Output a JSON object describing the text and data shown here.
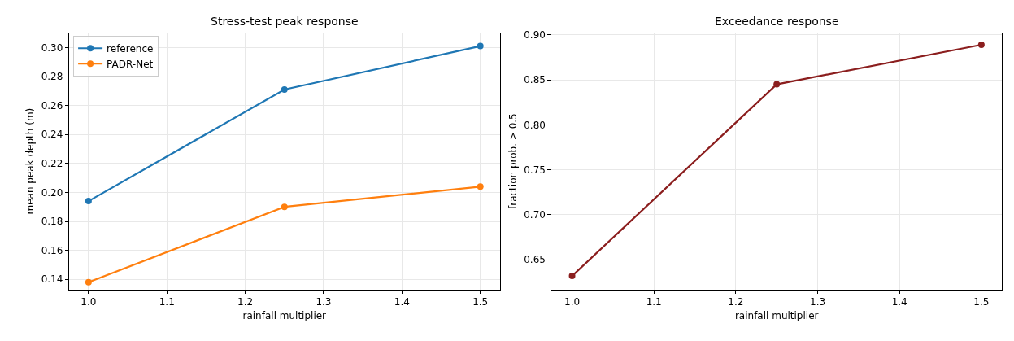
{
  "chart_data": [
    {
      "type": "line",
      "title": "Stress-test peak response",
      "xlabel": "rainfall multiplier",
      "ylabel": "mean peak depth (m)",
      "x": [
        1.0,
        1.25,
        1.5
      ],
      "series": [
        {
          "name": "reference",
          "color": "#1f77b4",
          "values": [
            0.194,
            0.271,
            0.301
          ]
        },
        {
          "name": "PADR-Net",
          "color": "#ff7f0e",
          "values": [
            0.138,
            0.19,
            0.204
          ]
        }
      ],
      "xlim": [
        0.975,
        1.525
      ],
      "xticks": [
        {
          "value": 1.0,
          "label": "1.0"
        },
        1.1,
        1.2,
        1.3,
        1.4,
        1.5
      ],
      "ylim": [
        0.133,
        0.31
      ],
      "yticks": [
        0.14,
        0.16,
        0.18,
        {
          "value": 0.2,
          "label": "0.20"
        },
        0.22,
        0.24,
        0.26,
        0.28,
        {
          "value": 0.3,
          "label": "0.30"
        }
      ],
      "grid": true,
      "legend": "top left",
      "marker": "circle",
      "line_style": "solid"
    },
    {
      "type": "line",
      "title": "Exceedance response",
      "xlabel": "rainfall multiplier",
      "ylabel": "fraction prob. > 0.5",
      "x": [
        1.0,
        1.25,
        1.5
      ],
      "series": [
        {
          "color": "#8b1e1e",
          "values": [
            0.632,
            0.845,
            0.889
          ]
        }
      ],
      "xlim": [
        0.975,
        1.525
      ],
      "xticks": [
        {
          "value": 1.0,
          "label": "1.0"
        },
        1.1,
        1.2,
        1.3,
        1.4,
        1.5
      ],
      "ylim": [
        0.617,
        0.902
      ],
      "yticks": [
        0.65,
        {
          "value": 0.7,
          "label": "0.70"
        },
        0.75,
        {
          "value": 0.8,
          "label": "0.80"
        },
        0.85,
        {
          "value": 0.9,
          "label": "0.90"
        }
      ],
      "grid": true,
      "legend": false,
      "marker": "circle",
      "line_style": "solid"
    }
  ]
}
